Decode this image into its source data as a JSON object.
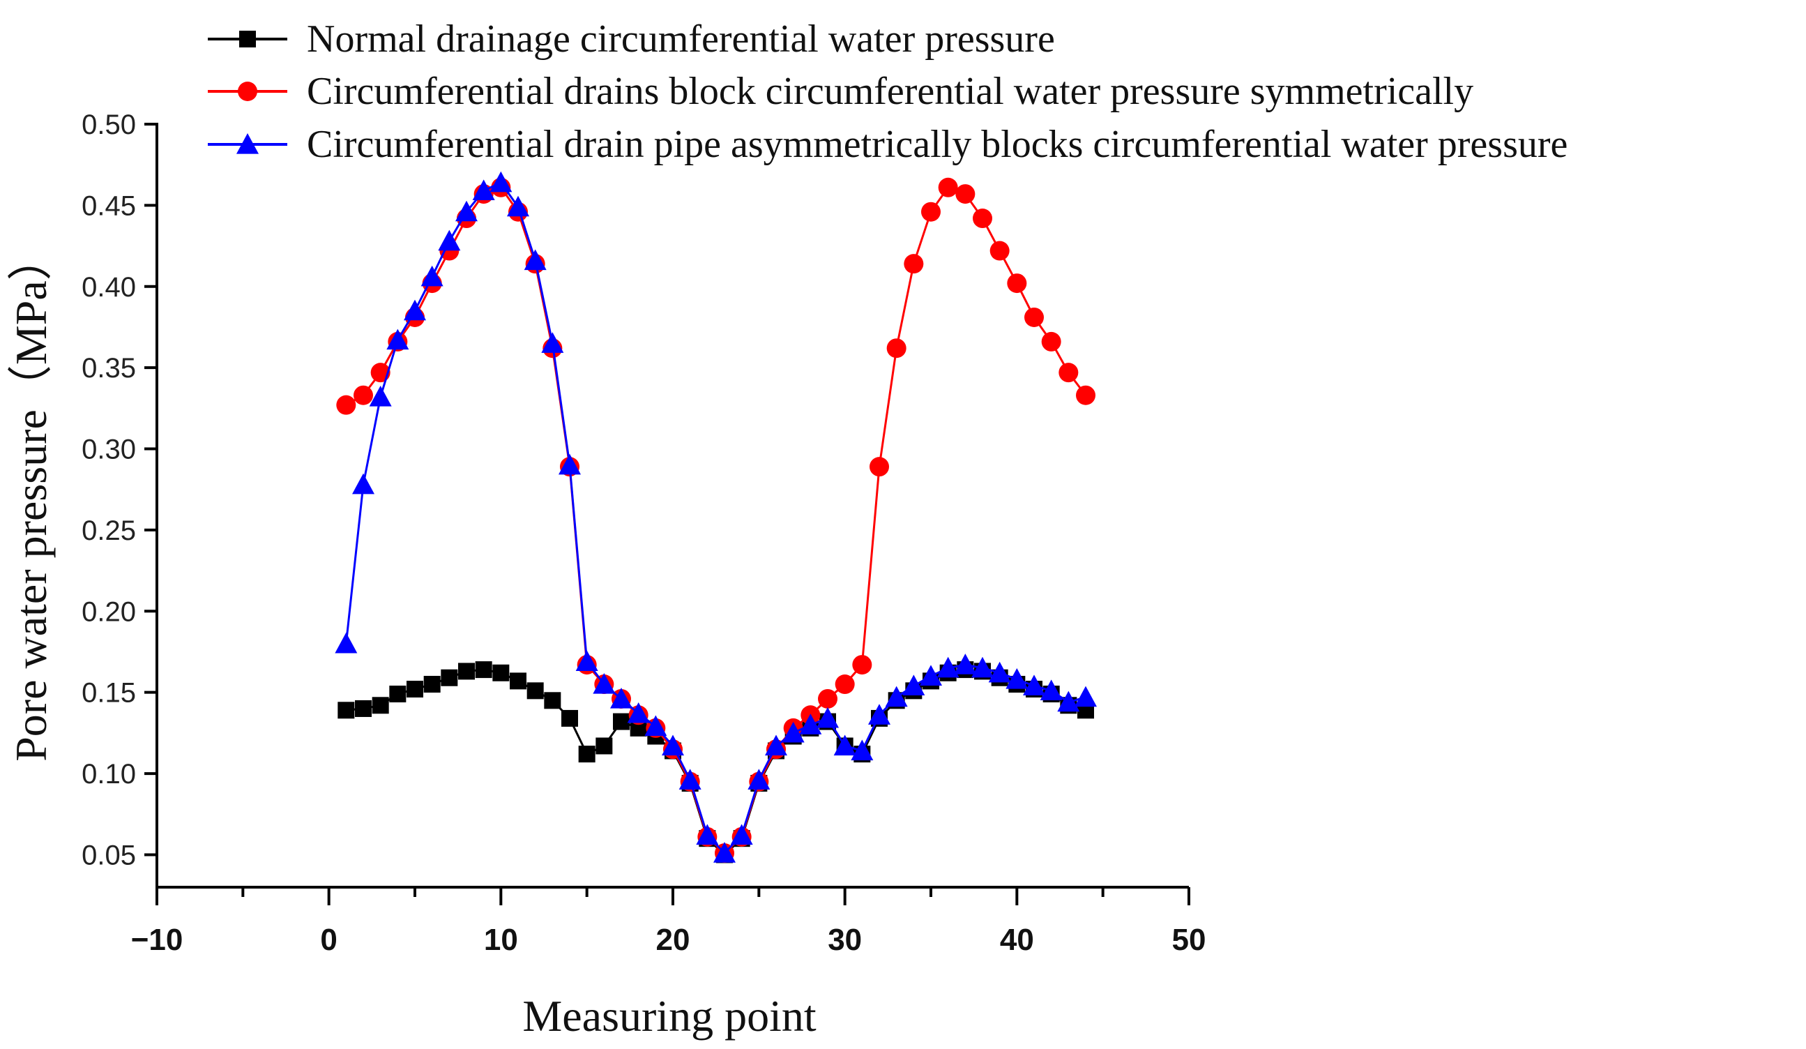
{
  "chart_data": {
    "type": "line",
    "title": "",
    "xlabel": "Measuring point",
    "ylabel": "Pore water pressure（MPa）",
    "xlim": [
      -10,
      50
    ],
    "ylim": [
      0.03,
      0.5
    ],
    "xticks": [
      "−10",
      "0",
      "10",
      "20",
      "30",
      "40",
      "50"
    ],
    "xtick_values": [
      -10,
      0,
      10,
      20,
      30,
      40,
      50
    ],
    "yticks": [
      "0.05",
      "0.10",
      "0.15",
      "0.20",
      "0.25",
      "0.30",
      "0.35",
      "0.40",
      "0.45",
      "0.50"
    ],
    "ytick_values": [
      0.05,
      0.1,
      0.15,
      0.2,
      0.25,
      0.3,
      0.35,
      0.4,
      0.45,
      0.5
    ],
    "legend_position": "top",
    "grid": false,
    "x": [
      1,
      2,
      3,
      4,
      5,
      6,
      7,
      8,
      9,
      10,
      11,
      12,
      13,
      14,
      15,
      16,
      17,
      18,
      19,
      20,
      21,
      22,
      23,
      24,
      25,
      26,
      27,
      28,
      29,
      30,
      31,
      32,
      33,
      34,
      35,
      36,
      37,
      38,
      39,
      40,
      41,
      42,
      43,
      44
    ],
    "series": [
      {
        "name": "Normal drainage circumferential water pressure",
        "color": "#000000",
        "marker": "square",
        "values": [
          0.139,
          0.14,
          0.142,
          0.149,
          0.152,
          0.155,
          0.159,
          0.163,
          0.164,
          0.162,
          0.157,
          0.151,
          0.145,
          0.134,
          0.112,
          0.117,
          0.132,
          0.128,
          0.123,
          0.114,
          0.094,
          0.06,
          0.05,
          0.06,
          0.094,
          0.114,
          0.123,
          0.128,
          0.132,
          0.117,
          0.112,
          0.134,
          0.145,
          0.151,
          0.157,
          0.162,
          0.164,
          0.163,
          0.159,
          0.155,
          0.152,
          0.149,
          0.142,
          0.139
        ]
      },
      {
        "name": "Circumferential drains block circumferential water pressure symmetrically",
        "color": "#ff0000",
        "marker": "circle",
        "values": [
          0.327,
          0.333,
          0.347,
          0.366,
          0.381,
          0.402,
          0.422,
          0.442,
          0.457,
          0.461,
          0.446,
          0.414,
          0.362,
          0.289,
          0.167,
          0.155,
          0.146,
          0.136,
          0.128,
          0.115,
          0.095,
          0.061,
          0.051,
          0.061,
          0.095,
          0.115,
          0.128,
          0.136,
          0.146,
          0.155,
          0.167,
          0.289,
          0.362,
          0.414,
          0.446,
          0.461,
          0.457,
          0.442,
          0.422,
          0.402,
          0.381,
          0.366,
          0.347,
          0.333
        ]
      },
      {
        "name": "Circumferential drain pipe asymmetrically blocks circumferential water pressure",
        "color": "#0000ff",
        "marker": "triangle",
        "values": [
          0.18,
          0.278,
          0.332,
          0.367,
          0.385,
          0.406,
          0.428,
          0.446,
          0.459,
          0.464,
          0.449,
          0.416,
          0.365,
          0.29,
          0.169,
          0.155,
          0.146,
          0.137,
          0.129,
          0.117,
          0.096,
          0.062,
          0.051,
          0.062,
          0.096,
          0.117,
          0.125,
          0.13,
          0.134,
          0.117,
          0.114,
          0.136,
          0.147,
          0.154,
          0.16,
          0.165,
          0.167,
          0.165,
          0.162,
          0.158,
          0.154,
          0.151,
          0.144,
          0.147
        ]
      }
    ]
  }
}
